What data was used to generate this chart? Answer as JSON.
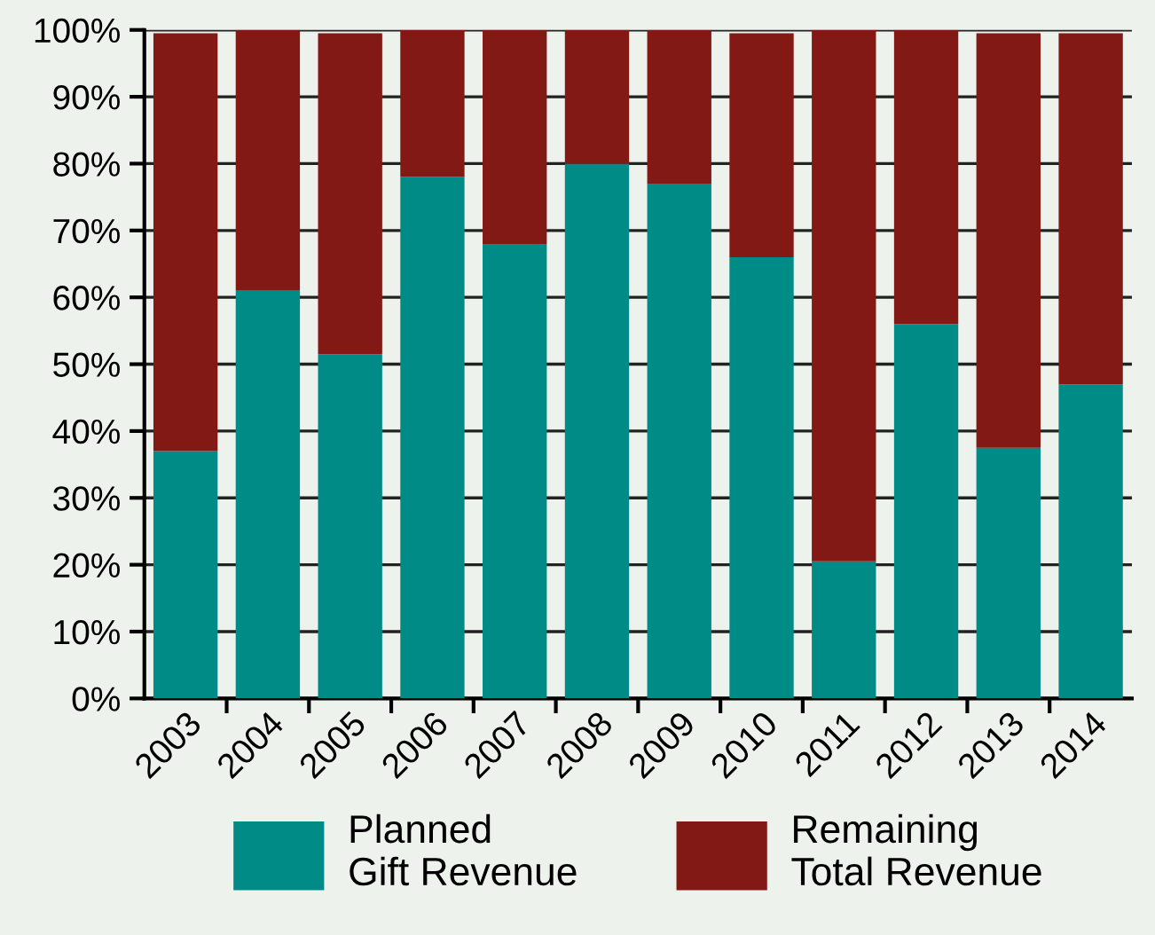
{
  "chart_data": {
    "type": "bar",
    "stacked": true,
    "categories": [
      "2003",
      "2004",
      "2005",
      "2006",
      "2007",
      "2008",
      "2009",
      "2010",
      "2011",
      "2012",
      "2013",
      "2014"
    ],
    "series": [
      {
        "name": "Planned\nGift Revenue",
        "color": "#008b87",
        "values": [
          37,
          61,
          51.5,
          78,
          68,
          80,
          77,
          66,
          20.5,
          56,
          37.5,
          47
        ]
      },
      {
        "name": "Remaining\nTotal Revenue",
        "color": "#821914",
        "values": [
          62.5,
          39,
          48,
          22,
          32,
          20,
          23,
          33.5,
          79.5,
          44,
          62,
          52.5
        ]
      }
    ],
    "ylim": [
      0,
      100
    ],
    "yticks": [
      {
        "value": 0,
        "label": "0%"
      },
      {
        "value": 10,
        "label": "10%"
      },
      {
        "value": 20,
        "label": "20%"
      },
      {
        "value": 30,
        "label": "30%"
      },
      {
        "value": 40,
        "label": "40%"
      },
      {
        "value": 50,
        "label": "50%"
      },
      {
        "value": 60,
        "label": "60%"
      },
      {
        "value": 70,
        "label": "70%"
      },
      {
        "value": 80,
        "label": "80%"
      },
      {
        "value": 90,
        "label": "90%"
      },
      {
        "value": 100,
        "label": "100%"
      }
    ],
    "grid": "y",
    "legend": "bottom"
  }
}
